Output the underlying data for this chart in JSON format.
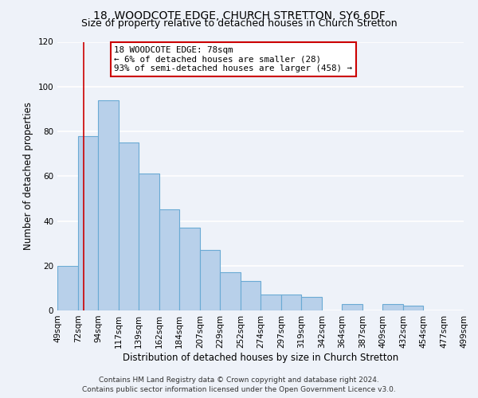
{
  "title": "18, WOODCOTE EDGE, CHURCH STRETTON, SY6 6DF",
  "subtitle": "Size of property relative to detached houses in Church Stretton",
  "xlabel": "Distribution of detached houses by size in Church Stretton",
  "ylabel": "Number of detached properties",
  "bar_values": [
    20,
    78,
    94,
    75,
    61,
    45,
    37,
    27,
    17,
    13,
    7,
    7,
    6,
    0,
    3,
    0,
    3,
    2
  ],
  "bin_edges": [
    49,
    72,
    94,
    117,
    139,
    162,
    184,
    207,
    229,
    252,
    274,
    297,
    319,
    342,
    364,
    387,
    409,
    432,
    454
  ],
  "bin_labels": [
    "49sqm",
    "72sqm",
    "94sqm",
    "117sqm",
    "139sqm",
    "162sqm",
    "184sqm",
    "207sqm",
    "229sqm",
    "252sqm",
    "274sqm",
    "297sqm",
    "319sqm",
    "342sqm",
    "364sqm",
    "387sqm",
    "409sqm",
    "432sqm",
    "454sqm",
    "477sqm",
    "499sqm"
  ],
  "all_bin_edges": [
    49,
    72,
    94,
    117,
    139,
    162,
    184,
    207,
    229,
    252,
    274,
    297,
    319,
    342,
    364,
    387,
    409,
    432,
    454,
    477,
    499
  ],
  "bar_color": "#b8d0ea",
  "bar_edge_color": "#6aaad4",
  "ylim": [
    0,
    120
  ],
  "yticks": [
    0,
    20,
    40,
    60,
    80,
    100,
    120
  ],
  "property_line_x": 78,
  "annotation_title": "18 WOODCOTE EDGE: 78sqm",
  "annotation_line1": "← 6% of detached houses are smaller (28)",
  "annotation_line2": "93% of semi-detached houses are larger (458) →",
  "annotation_box_color": "#ffffff",
  "annotation_box_edge_color": "#cc0000",
  "red_line_color": "#cc0000",
  "footer1": "Contains HM Land Registry data © Crown copyright and database right 2024.",
  "footer2": "Contains public sector information licensed under the Open Government Licence v3.0.",
  "background_color": "#eef2f9",
  "grid_color": "#ffffff",
  "title_fontsize": 10,
  "subtitle_fontsize": 9,
  "axis_label_fontsize": 8.5,
  "tick_fontsize": 7.5,
  "footer_fontsize": 6.5
}
